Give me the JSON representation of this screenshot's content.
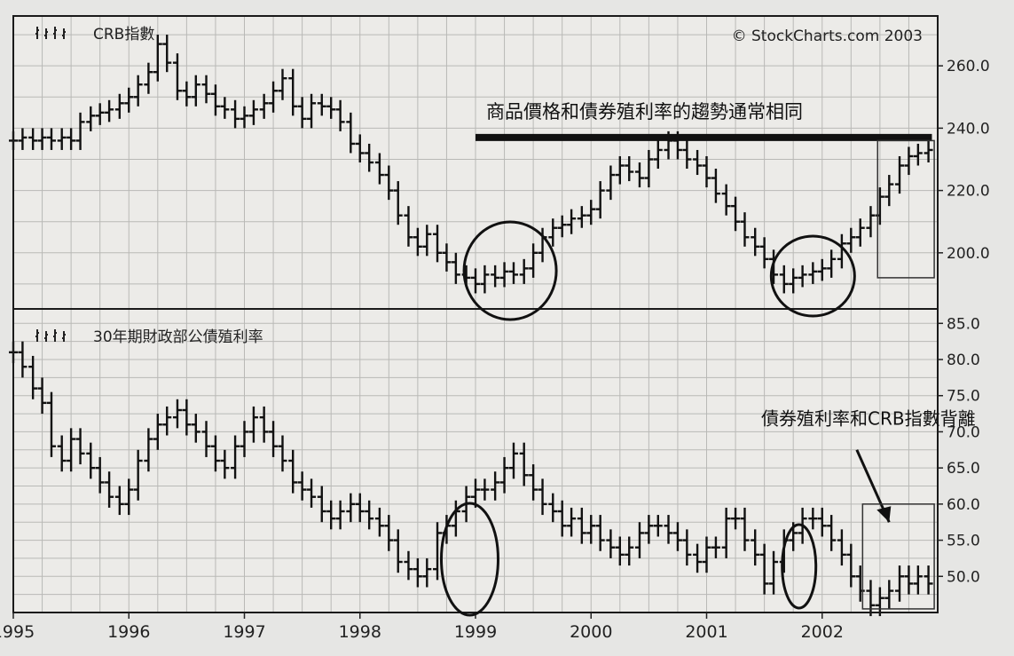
{
  "chart_data": [
    {
      "type": "bar",
      "style": "ohlc-weekly",
      "title": "CRB指數",
      "copyright": "© StockCharts.com 2003",
      "ylim": [
        182,
        276
      ],
      "yticks": [
        200.0,
        220.0,
        240.0,
        260.0
      ],
      "ytick_labels": [
        "200.0",
        "220.0",
        "240.0",
        "260.0"
      ],
      "x_range": [
        1995.0,
        2003.0
      ],
      "grid": true,
      "series": [
        {
          "name": "CRB指數",
          "x": [
            1995.0,
            1995.08,
            1995.17,
            1995.25,
            1995.33,
            1995.42,
            1995.5,
            1995.58,
            1995.67,
            1995.75,
            1995.83,
            1995.92,
            1996.0,
            1996.08,
            1996.17,
            1996.25,
            1996.33,
            1996.42,
            1996.5,
            1996.58,
            1996.67,
            1996.75,
            1996.83,
            1996.92,
            1997.0,
            1997.08,
            1997.17,
            1997.25,
            1997.33,
            1997.42,
            1997.5,
            1997.58,
            1997.67,
            1997.75,
            1997.83,
            1997.92,
            1998.0,
            1998.08,
            1998.17,
            1998.25,
            1998.33,
            1998.42,
            1998.5,
            1998.58,
            1998.67,
            1998.75,
            1998.83,
            1998.92,
            1999.0,
            1999.08,
            1999.17,
            1999.25,
            1999.33,
            1999.42,
            1999.5,
            1999.58,
            1999.67,
            1999.75,
            1999.83,
            1999.92,
            2000.0,
            2000.08,
            2000.17,
            2000.25,
            2000.33,
            2000.42,
            2000.5,
            2000.58,
            2000.67,
            2000.75,
            2000.83,
            2000.92,
            2001.0,
            2001.08,
            2001.17,
            2001.25,
            2001.33,
            2001.42,
            2001.5,
            2001.58,
            2001.67,
            2001.75,
            2001.83,
            2001.92,
            2002.0,
            2002.08,
            2002.17,
            2002.25,
            2002.33,
            2002.42,
            2002.5,
            2002.58,
            2002.67,
            2002.75,
            2002.83,
            2002.92
          ],
          "y": [
            236,
            237,
            236,
            237,
            236,
            237,
            236,
            242,
            244,
            245,
            246,
            248,
            250,
            254,
            258,
            267,
            261,
            252,
            250,
            254,
            251,
            247,
            246,
            243,
            244,
            246,
            248,
            252,
            256,
            247,
            243,
            248,
            247,
            246,
            242,
            235,
            232,
            229,
            225,
            220,
            212,
            205,
            202,
            206,
            200,
            197,
            193,
            192,
            190,
            193,
            192,
            194,
            193,
            195,
            200,
            205,
            208,
            209,
            211,
            212,
            214,
            220,
            225,
            228,
            226,
            224,
            230,
            233,
            236,
            233,
            230,
            228,
            224,
            219,
            215,
            210,
            205,
            202,
            198,
            193,
            190,
            192,
            193,
            194,
            195,
            198,
            203,
            205,
            208,
            212,
            218,
            222,
            228,
            231,
            232,
            233
          ]
        }
      ],
      "annotations": [
        {
          "text": "商品價格和債券殖利率的趨勢通常相同",
          "y": 237.0,
          "x_from": 1999.0,
          "x_to": 2002.95
        }
      ]
    },
    {
      "type": "bar",
      "style": "ohlc-weekly",
      "title": "30年期財政部公債殖利率",
      "ylim": [
        45.0,
        87.0
      ],
      "yticks": [
        50.0,
        55.0,
        60.0,
        65.0,
        70.0,
        75.0,
        80.0,
        85.0
      ],
      "ytick_labels": [
        "50.0",
        "55.0",
        "60.0",
        "65.0",
        "70.0",
        "75.0",
        "80.0",
        "85.0"
      ],
      "x_range": [
        1995.0,
        2003.0
      ],
      "xticks": [
        1995,
        1996,
        1997,
        1998,
        1999,
        2000,
        2001,
        2002
      ],
      "xtick_labels": [
        "1995",
        "1996",
        "1997",
        "1998",
        "1999",
        "2000",
        "2001",
        "2002"
      ],
      "grid": true,
      "series": [
        {
          "name": "30年期財政部公債殖利率",
          "x": [
            1995.0,
            1995.08,
            1995.17,
            1995.25,
            1995.33,
            1995.42,
            1995.5,
            1995.58,
            1995.67,
            1995.75,
            1995.83,
            1995.92,
            1996.0,
            1996.08,
            1996.17,
            1996.25,
            1996.33,
            1996.42,
            1996.5,
            1996.58,
            1996.67,
            1996.75,
            1996.83,
            1996.92,
            1997.0,
            1997.08,
            1997.17,
            1997.25,
            1997.33,
            1997.42,
            1997.5,
            1997.58,
            1997.67,
            1997.75,
            1997.83,
            1997.92,
            1998.0,
            1998.08,
            1998.17,
            1998.25,
            1998.33,
            1998.42,
            1998.5,
            1998.58,
            1998.67,
            1998.75,
            1998.83,
            1998.92,
            1999.0,
            1999.08,
            1999.17,
            1999.25,
            1999.33,
            1999.42,
            1999.5,
            1999.58,
            1999.67,
            1999.75,
            1999.83,
            1999.92,
            2000.0,
            2000.08,
            2000.17,
            2000.25,
            2000.33,
            2000.42,
            2000.5,
            2000.58,
            2000.67,
            2000.75,
            2000.83,
            2000.92,
            2001.0,
            2001.08,
            2001.17,
            2001.25,
            2001.33,
            2001.42,
            2001.5,
            2001.58,
            2001.67,
            2001.75,
            2001.83,
            2001.92,
            2002.0,
            2002.08,
            2002.17,
            2002.25,
            2002.33,
            2002.42,
            2002.5,
            2002.58,
            2002.67,
            2002.75,
            2002.83,
            2002.92
          ],
          "y": [
            81,
            79,
            76,
            74,
            68,
            66,
            69,
            67,
            65,
            63,
            61,
            60,
            62,
            66,
            69,
            71,
            72,
            73,
            71,
            70,
            68,
            66,
            65,
            68,
            70,
            72,
            70,
            68,
            66,
            63,
            62,
            61,
            59,
            58,
            59,
            60,
            59,
            58,
            57,
            55,
            52,
            51,
            50,
            51,
            56,
            57,
            59,
            61,
            62,
            62,
            63,
            65,
            67,
            64,
            62,
            60,
            59,
            57,
            58,
            56,
            57,
            55,
            54,
            53,
            54,
            56,
            57,
            57,
            56,
            55,
            53,
            52,
            54,
            54,
            58,
            58,
            55,
            53,
            49,
            52,
            55,
            56,
            58,
            58,
            57,
            55,
            53,
            50,
            48,
            46,
            47,
            48,
            50,
            49,
            50,
            49
          ]
        }
      ],
      "annotations": [
        {
          "text": "債券殖利率和CRB指數背離",
          "x": 2002.4,
          "y": 71.0
        }
      ]
    }
  ]
}
